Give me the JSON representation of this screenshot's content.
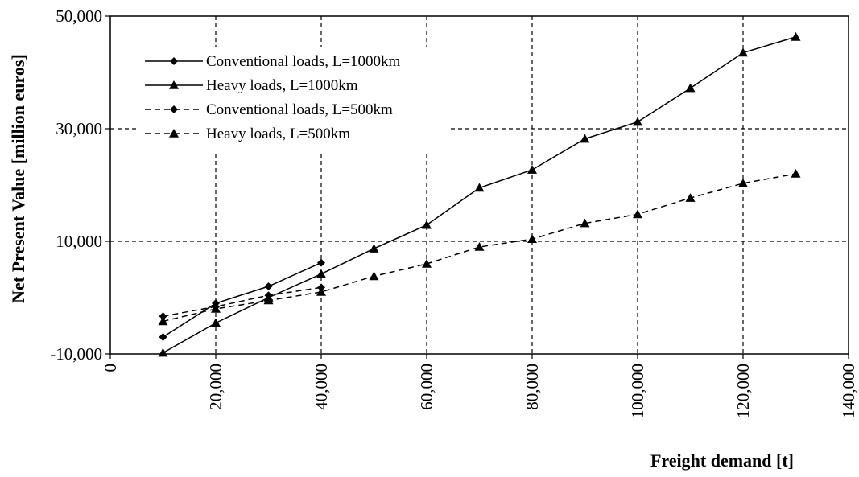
{
  "chart_data": {
    "type": "line",
    "title": "",
    "xlabel": "Freight demand [t]",
    "ylabel": "Net Present Value [million euros]",
    "xlim": [
      0,
      140000
    ],
    "ylim": [
      -10000,
      50000
    ],
    "x_ticks": [
      0,
      20000,
      40000,
      60000,
      80000,
      100000,
      120000,
      140000
    ],
    "x_tick_labels": [
      "0",
      "20,000",
      "40,000",
      "60,000",
      "80,000",
      "100,000",
      "120,000",
      "140,000"
    ],
    "y_ticks": [
      -10000,
      10000,
      30000,
      50000
    ],
    "y_tick_labels": [
      "-10,000",
      "10,000",
      "30,000",
      "50,000"
    ],
    "grid": "dashed",
    "legend_position": "top-left",
    "series": [
      {
        "name": "Conventional loads, L=1000km",
        "line_style": "solid",
        "marker": "diamond",
        "x": [
          10000,
          20000,
          30000,
          40000
        ],
        "y": [
          -7000,
          -1000,
          2000,
          6200
        ]
      },
      {
        "name": "Heavy loads, L=1000km",
        "line_style": "solid",
        "marker": "triangle",
        "x": [
          10000,
          20000,
          30000,
          40000,
          50000,
          60000,
          70000,
          80000,
          90000,
          100000,
          110000,
          120000,
          130000
        ],
        "y": [
          -9800,
          -4500,
          0,
          4200,
          8700,
          12900,
          19500,
          22700,
          28200,
          31200,
          37200,
          43500,
          46300
        ]
      },
      {
        "name": "Conventional loads, L=500km",
        "line_style": "dashed",
        "marker": "diamond",
        "x": [
          10000,
          20000,
          30000,
          40000
        ],
        "y": [
          -3300,
          -1600,
          400,
          1800
        ]
      },
      {
        "name": "Heavy loads, L=500km",
        "line_style": "dashed",
        "marker": "triangle",
        "x": [
          10000,
          20000,
          30000,
          40000,
          50000,
          60000,
          70000,
          80000,
          90000,
          100000,
          110000,
          120000,
          130000
        ],
        "y": [
          -4200,
          -2000,
          -500,
          1000,
          3800,
          6000,
          9000,
          10400,
          13200,
          14800,
          17700,
          20300,
          22000
        ]
      }
    ]
  }
}
